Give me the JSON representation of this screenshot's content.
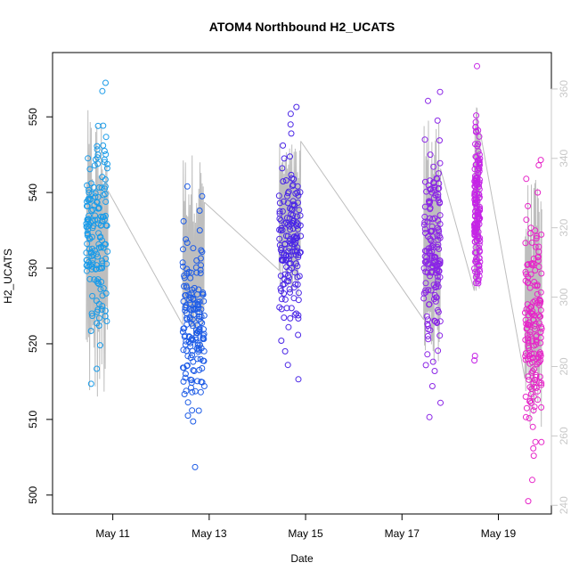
{
  "chart_data": {
    "type": "scatter",
    "title": "ATOM4 Northbound H2_UCATS",
    "xlabel": "Date",
    "ylabel": "H2_UCATS",
    "x_ticks": [
      "May 11",
      "May 13",
      "May 15",
      "May 17",
      "May 19"
    ],
    "x_tick_days": [
      11,
      13,
      15,
      17,
      19
    ],
    "xlim_days": [
      9.75,
      20.1
    ],
    "ylim": [
      497.5,
      558.5
    ],
    "y_ticks": [
      500,
      510,
      520,
      530,
      540,
      550
    ],
    "y2_label": "",
    "y2lim": [
      237.5,
      370.5
    ],
    "y2_ticks": [
      240,
      260,
      280,
      300,
      320,
      340,
      360
    ],
    "grid": false,
    "legend": "none",
    "colors": {
      "cluster_1": "#1a9be8",
      "cluster_2": "#1e5ce6",
      "cluster_3": "#4a26e6",
      "cluster_4": "#8a24e6",
      "cluster_5": "#c524e6",
      "cluster_6": "#e624c8",
      "trace_line": "#bebebe",
      "right_axis": "#c8c8c8"
    },
    "series": [
      {
        "start_day": "May 10",
        "x_range_days": [
          10.45,
          10.9
        ],
        "color_key": "cluster_1",
        "y_min": 514.7,
        "y_max": 554.5,
        "sample_values": [
          554.5,
          553.4,
          548.8,
          546.2,
          545.0,
          543.2,
          540.8,
          538.3,
          537.6,
          536.4,
          535.1,
          534.0,
          532.7,
          531.1,
          530.0,
          528.5,
          527.2,
          526.3,
          525.0,
          523.4,
          523.0,
          521.7,
          519.8,
          516.7,
          514.7
        ]
      },
      {
        "start_day": "May 12",
        "x_range_days": [
          12.45,
          12.9
        ],
        "color_key": "cluster_2",
        "y_min": 503.7,
        "y_max": 540.8,
        "sample_values": [
          540.8,
          539.5,
          537.6,
          536.2,
          535.0,
          533.8,
          532.5,
          531.0,
          530.2,
          529.4,
          528.7,
          527.6,
          526.5,
          525.6,
          524.6,
          523.4,
          522.0,
          520.8,
          519.4,
          518.0,
          516.4,
          515.2,
          513.6,
          511.2,
          503.7
        ]
      },
      {
        "start_day": "May 14",
        "x_range_days": [
          14.45,
          14.9
        ],
        "color_key": "cluster_3",
        "y_min": 515.3,
        "y_max": 551.3,
        "sample_values": [
          551.3,
          550.4,
          549.0,
          547.8,
          546.2,
          544.5,
          543.2,
          541.6,
          540.0,
          538.4,
          537.0,
          535.6,
          534.0,
          532.6,
          531.2,
          530.0,
          528.6,
          527.2,
          525.8,
          524.0,
          522.2,
          520.4,
          519.0,
          517.2,
          515.3
        ]
      },
      {
        "start_day": "May 17",
        "x_range_days": [
          17.45,
          17.8
        ],
        "color_key": "cluster_4",
        "y_min": 510.3,
        "y_max": 553.3,
        "sample_values": [
          553.3,
          552.1,
          549.5,
          547.0,
          545.0,
          543.4,
          541.8,
          540.0,
          538.6,
          537.0,
          535.5,
          534.0,
          532.6,
          531.0,
          529.4,
          527.8,
          526.0,
          524.2,
          522.4,
          520.6,
          518.6,
          516.4,
          514.4,
          512.2,
          510.3
        ]
      },
      {
        "start_day": "May 18",
        "x_range_days": [
          18.5,
          18.62
        ],
        "color_key": "cluster_5",
        "y_min": 517.8,
        "y_max": 556.7,
        "sample_values": [
          556.7,
          549.3,
          548.0,
          546.4,
          545.0,
          544.0,
          543.0,
          542.0,
          541.0,
          540.0,
          539.0,
          537.5,
          536.0,
          534.8,
          533.7,
          528.3,
          528.0,
          518.4,
          517.8
        ]
      },
      {
        "start_day": "May 19",
        "x_range_days": [
          19.55,
          19.9
        ],
        "color_key": "cluster_6",
        "y_min": 499.2,
        "y_max": 544.3,
        "sample_values": [
          544.3,
          543.6,
          541.8,
          540.0,
          538.2,
          536.4,
          534.6,
          532.8,
          531.0,
          529.2,
          527.4,
          525.6,
          523.8,
          522.0,
          520.2,
          518.4,
          516.6,
          514.8,
          513.0,
          511.2,
          509.0,
          507.0,
          505.2,
          502.0,
          499.2
        ]
      }
    ],
    "trace_right_axis": {
      "description_values_in_right_units": [
        {
          "day": 10.45,
          "low": 268,
          "high": 354
        },
        {
          "day": 12.45,
          "low": 283,
          "high": 342
        },
        {
          "day": 14.45,
          "low": 300,
          "high": 345
        },
        {
          "day": 17.45,
          "low": 278,
          "high": 353
        },
        {
          "day": 18.5,
          "low": 300,
          "high": 355
        },
        {
          "day": 19.55,
          "low": 262,
          "high": 334
        }
      ]
    }
  }
}
